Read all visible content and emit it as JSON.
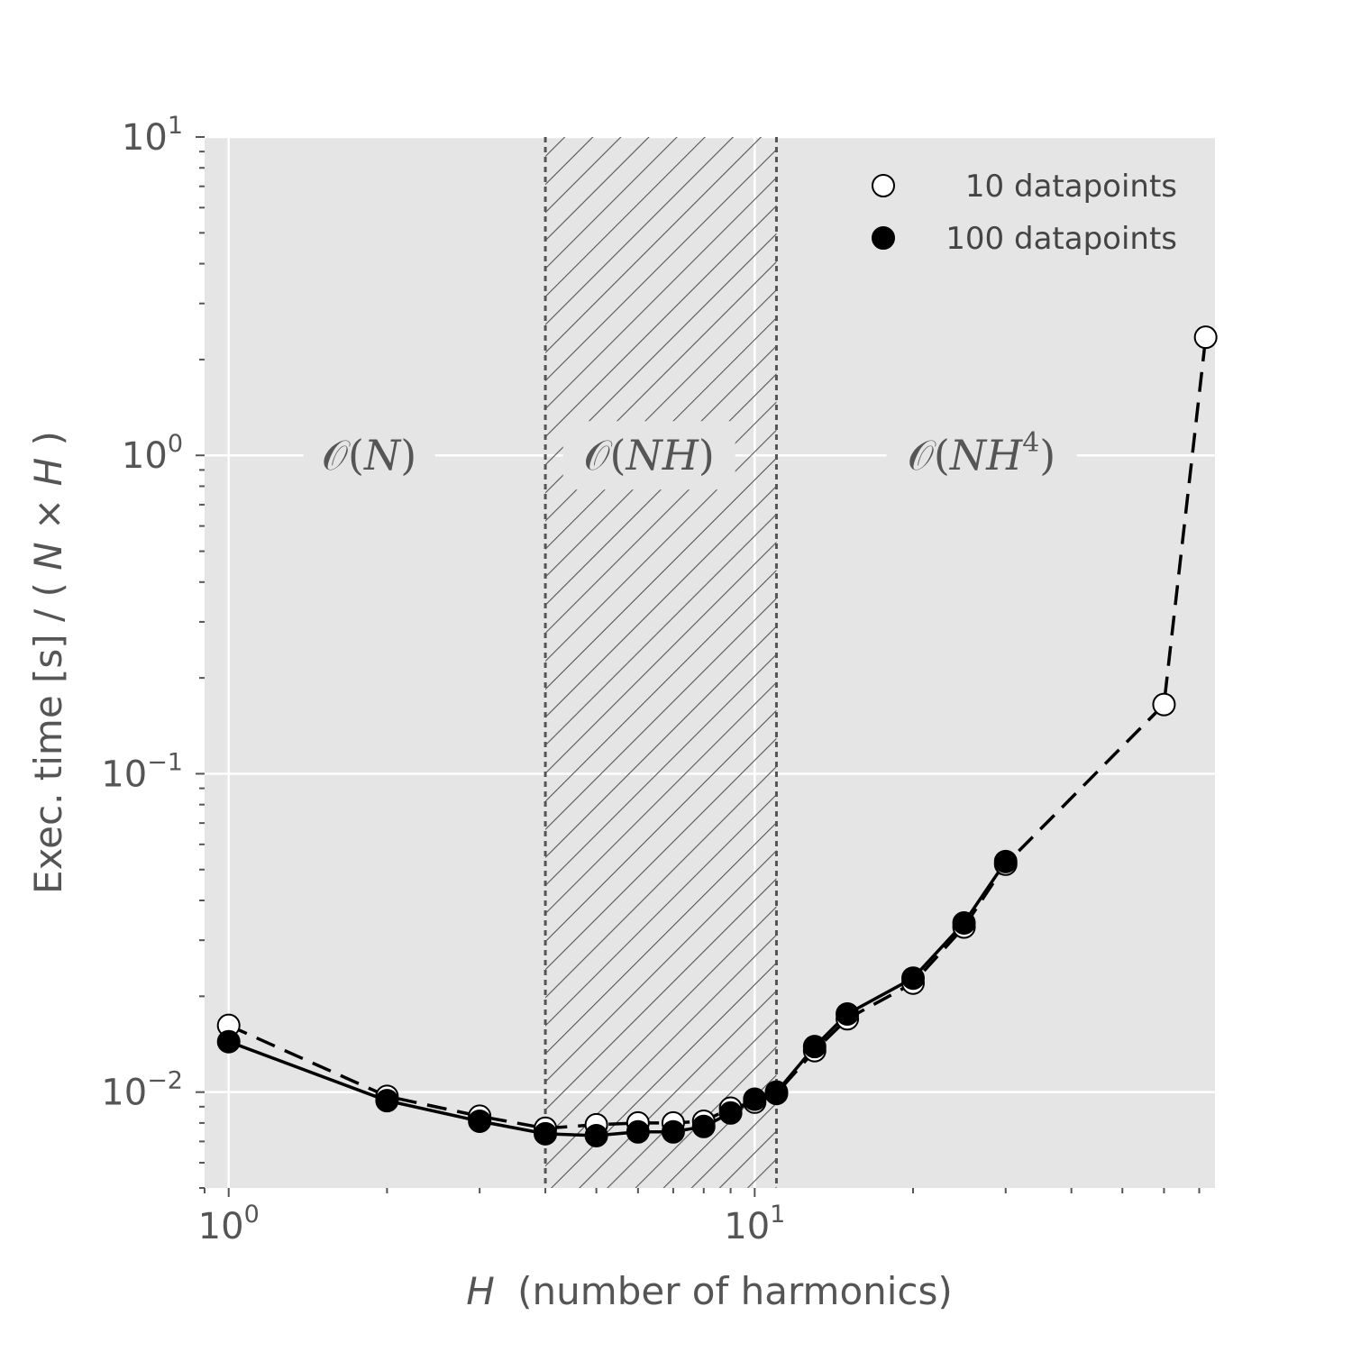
{
  "chart_data": {
    "type": "line",
    "x_scale": "log",
    "y_scale": "log",
    "xlim": [
      0.9,
      75
    ],
    "ylim": [
      0.005,
      10
    ],
    "grid": true,
    "xlabel": {
      "var": "H",
      "rest": "(number of harmonics)"
    },
    "ylabel": {
      "prefix": "Exec. time [s] / (",
      "a": "N",
      "op": "×",
      "b": "H",
      "suffix": ")"
    },
    "x_ticks": [
      {
        "value": 1,
        "base": "10",
        "exp": "0"
      },
      {
        "value": 10,
        "base": "10",
        "exp": "1"
      }
    ],
    "y_ticks": [
      {
        "value": 0.01,
        "base": "10",
        "exp": "−2"
      },
      {
        "value": 0.1,
        "base": "10",
        "exp": "−1"
      },
      {
        "value": 1,
        "base": "10",
        "exp": "0"
      },
      {
        "value": 10,
        "base": "10",
        "exp": "1"
      }
    ],
    "shaded_band": {
      "x_range": [
        4,
        11
      ],
      "pattern": "hatch"
    },
    "region_labels": [
      {
        "x": 1.85,
        "y": 1.0,
        "pre": "𝒪(",
        "var": "N",
        "sup": "",
        "post": ")"
      },
      {
        "x": 6.3,
        "y": 1.0,
        "pre": "𝒪(",
        "var": "NH",
        "sup": "",
        "post": ")"
      },
      {
        "x": 27,
        "y": 1.0,
        "pre": "𝒪(",
        "var": "NH",
        "sup": "4",
        "post": ")"
      }
    ],
    "legend_position": "top-right",
    "series": [
      {
        "name": "10 datapoints",
        "marker": "open-circle",
        "line": "dashed",
        "color": "#000000",
        "x": [
          1,
          2,
          3,
          4,
          5,
          6,
          7,
          8,
          9,
          10,
          11,
          13,
          15,
          20,
          25,
          30,
          60,
          72
        ],
        "y": [
          0.0162,
          0.0097,
          0.0084,
          0.0077,
          0.0079,
          0.008,
          0.008,
          0.0081,
          0.0089,
          0.0093,
          0.0099,
          0.0135,
          0.017,
          0.022,
          0.033,
          0.052,
          0.165,
          2.35
        ]
      },
      {
        "name": "100 datapoints",
        "marker": "filled-circle",
        "line": "solid",
        "color": "#000000",
        "x": [
          1,
          2,
          3,
          4,
          5,
          6,
          7,
          8,
          9,
          10,
          11,
          13,
          15,
          20,
          25,
          30
        ],
        "y": [
          0.0144,
          0.0094,
          0.0081,
          0.0074,
          0.0073,
          0.0075,
          0.0075,
          0.0078,
          0.0086,
          0.0095,
          0.01,
          0.0139,
          0.0176,
          0.0228,
          0.034,
          0.053
        ]
      }
    ]
  }
}
